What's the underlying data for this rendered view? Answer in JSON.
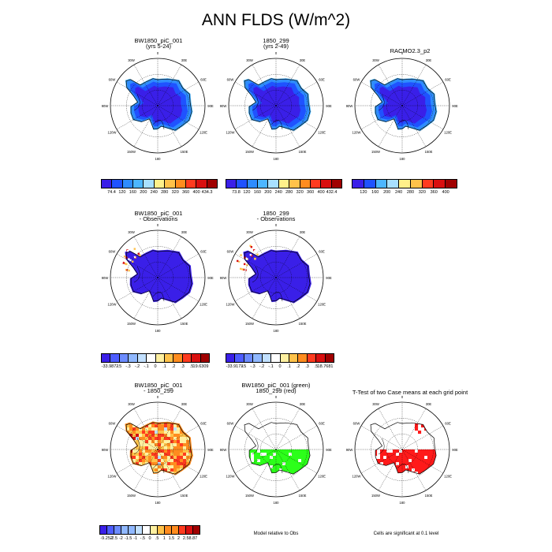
{
  "title": "ANN FLDS (W/m^2)",
  "lon_labels": [
    "0",
    "30E",
    "60E",
    "90E",
    "120E",
    "150E",
    "180",
    "150W",
    "120W",
    "90W",
    "60W",
    "30W"
  ],
  "colors": {
    "abs_scale": [
      "#3a1fe8",
      "#1f52ff",
      "#2e8cff",
      "#4cb6ff",
      "#a8e0ff",
      "#fff08a",
      "#ffc24a",
      "#ff8c1f",
      "#ff3b1f",
      "#d90f0f",
      "#a00000"
    ],
    "diff_scale": [
      "#3a1fe8",
      "#4d5cff",
      "#6c8cff",
      "#90b8ff",
      "#c2e0ff",
      "#ffffff",
      "#fff0a0",
      "#ffc24a",
      "#ff8c1f",
      "#ff3b1f",
      "#d90f0f",
      "#a00000"
    ],
    "mask_green": "#2cff1a",
    "mask_red": "#ff1a1a"
  },
  "panels": [
    {
      "title": [
        "BW1850_piC_001",
        "(yrs 5-24)"
      ],
      "fill": "abs"
    },
    {
      "title": [
        "1850_299",
        "(yrs 2-49)"
      ],
      "fill": "abs"
    },
    {
      "title": [
        "RACMO2.3_p2"
      ],
      "fill": "abs"
    },
    {
      "title": [
        "BW1850_piC_001",
        "- Observations"
      ],
      "fill": "obsdiff"
    },
    {
      "title": [
        "1850_299",
        "- Observations"
      ],
      "fill": "obsdiff"
    },
    {
      "title": [
        "BW1850_piC_001",
        "- 1850_299"
      ],
      "fill": "casediff"
    },
    {
      "title": [
        "BW1850_piC_001 (green)",
        "1850_299 (red)"
      ],
      "fill": "mask"
    },
    {
      "title": [
        "T-Test of two Case means at each grid point"
      ],
      "fill": "ttest"
    }
  ],
  "colorbars": [
    {
      "labels": [
        "74.4",
        "120",
        "160",
        "200",
        "240",
        "280",
        "320",
        "360",
        "400",
        "434.3"
      ]
    },
    {
      "labels": [
        "73.8",
        "120",
        "160",
        "200",
        "240",
        "280",
        "320",
        "360",
        "400",
        "432.4"
      ]
    },
    {
      "labels": [
        "120",
        "160",
        "200",
        "240",
        "280",
        "320",
        "360",
        "400"
      ]
    },
    {
      "labels": [
        "-33.9872",
        "-.5",
        "-.3",
        "-.2",
        "-.1",
        "0",
        ".1",
        ".2",
        ".3",
        ".5",
        "19.6309"
      ]
    },
    {
      "labels": [
        "-33.9173",
        "-.5",
        "-.3",
        "-.2",
        "-.1",
        "0",
        ".1",
        ".2",
        ".3",
        ".5",
        "18.7681"
      ]
    },
    {
      "labels": [
        "-9.252",
        "-2.5",
        "-2",
        "-1.5",
        "-1",
        "-.5",
        "0",
        ".5",
        "1",
        "1.5",
        "2",
        "2.5",
        "8.87"
      ]
    }
  ],
  "notes": {
    "model_vs_obs": "Model relative to Obs",
    "significance": "Cells are significant at 0.1 level"
  }
}
